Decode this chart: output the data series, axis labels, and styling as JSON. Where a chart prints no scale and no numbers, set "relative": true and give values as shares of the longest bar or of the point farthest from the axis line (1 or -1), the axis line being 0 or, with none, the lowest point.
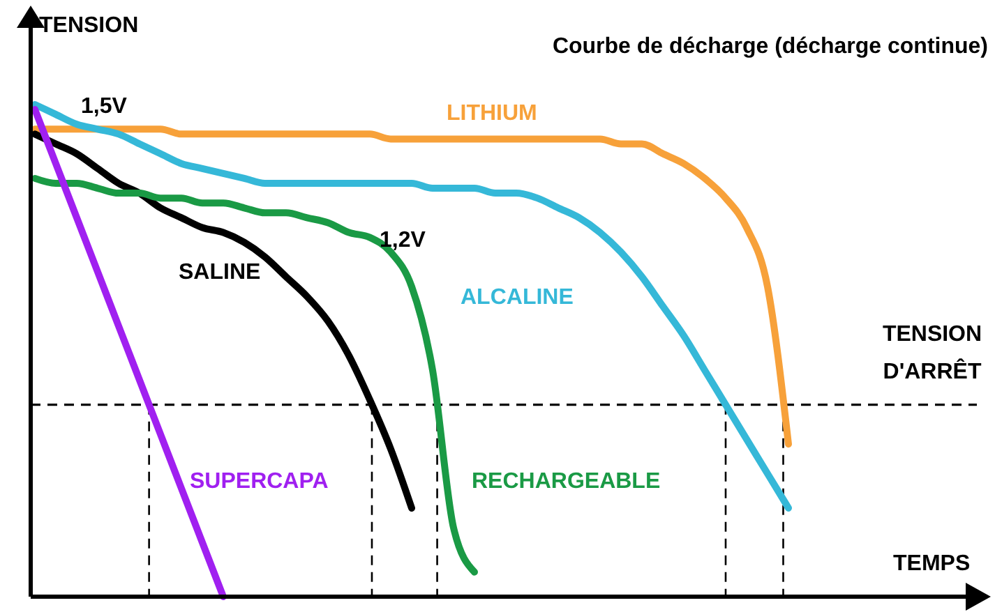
{
  "chart_data": {
    "type": "line",
    "title": "Courbe de décharge (décharge continue)",
    "xlabel": "TEMPS",
    "ylabel": "TENSION",
    "relative": true,
    "legend": false,
    "grid": false,
    "marker": "none",
    "line_style": "solid",
    "categories": [
      null,
      null,
      null,
      null,
      null,
      null,
      null,
      null,
      null,
      null,
      null,
      null,
      null,
      null,
      null,
      null,
      null,
      null,
      null,
      null,
      null,
      null,
      null,
      null,
      null,
      null,
      null,
      null,
      null,
      null,
      null,
      null,
      null,
      null,
      null,
      null,
      null,
      null,
      null,
      null,
      null,
      null,
      null,
      null,
      null
    ],
    "series": [
      {
        "name": "LITHIUM",
        "color": "#f7a13a",
        "values": [
          0.95,
          0.95,
          0.95,
          0.95,
          0.95,
          0.95,
          0.95,
          0.94,
          0.94,
          0.94,
          0.94,
          0.94,
          0.94,
          0.94,
          0.94,
          0.94,
          0.94,
          0.93,
          0.93,
          0.93,
          0.93,
          0.93,
          0.93,
          0.93,
          0.93,
          0.93,
          0.93,
          0.93,
          0.92,
          0.92,
          0.9,
          0.88,
          0.85,
          0.81,
          0.75,
          0.63,
          0.31,
          null,
          null,
          null,
          null,
          null,
          null,
          null,
          null
        ]
      },
      {
        "name": "ALCALINE",
        "color": "#35b8d8",
        "values": [
          1.0,
          0.98,
          0.96,
          0.95,
          0.94,
          0.92,
          0.9,
          0.88,
          0.87,
          0.86,
          0.85,
          0.84,
          0.84,
          0.84,
          0.84,
          0.84,
          0.84,
          0.84,
          0.84,
          0.83,
          0.83,
          0.83,
          0.82,
          0.82,
          0.81,
          0.79,
          0.77,
          0.74,
          0.7,
          0.65,
          0.59,
          0.53,
          0.46,
          0.39,
          0.32,
          0.25,
          0.18,
          null,
          null,
          null,
          null,
          null,
          null,
          null,
          null
        ]
      },
      {
        "name": "SALINE",
        "color": "#000000",
        "values": [
          0.94,
          0.92,
          0.9,
          0.87,
          0.84,
          0.82,
          0.79,
          0.77,
          0.75,
          0.74,
          0.72,
          0.69,
          0.65,
          0.61,
          0.56,
          0.49,
          0.4,
          0.3,
          0.18,
          null,
          null,
          null,
          null,
          null,
          null,
          null,
          null,
          null,
          null,
          null,
          null,
          null,
          null,
          null,
          null,
          null,
          null,
          null,
          null,
          null,
          null,
          null,
          null,
          null,
          null
        ]
      },
      {
        "name": "RECHARGEABLE",
        "color": "#1a9a45",
        "values": [
          0.85,
          0.84,
          0.84,
          0.83,
          0.82,
          0.82,
          0.81,
          0.81,
          0.8,
          0.8,
          0.79,
          0.78,
          0.78,
          0.77,
          0.76,
          0.74,
          0.73,
          0.7,
          0.63,
          0.46,
          0.14,
          0.05,
          null,
          null,
          null,
          null,
          null,
          null,
          null,
          null,
          null,
          null,
          null,
          null,
          null,
          null,
          null,
          null,
          null,
          null,
          null,
          null,
          null,
          null,
          null
        ]
      },
      {
        "name": "SUPERCAPA",
        "color": "#a020f0",
        "values": [
          0.99,
          0.88,
          0.77,
          0.66,
          0.55,
          0.44,
          0.33,
          0.22,
          0.11,
          0,
          null,
          null,
          null,
          null,
          null,
          null,
          null,
          null,
          null,
          null,
          null,
          null,
          null,
          null,
          null,
          null,
          null,
          null,
          null,
          null,
          null,
          null,
          null,
          null,
          null,
          null,
          null,
          null,
          null,
          null,
          null,
          null,
          null,
          null,
          null
        ]
      }
    ],
    "ref_lines": [
      {
        "axis": "y",
        "value": 0.39,
        "label": "TENSION D'ARRÊT",
        "line_style": "dashed",
        "color": "#000000"
      }
    ],
    "annotations": [
      "1,5V",
      "1,2V"
    ]
  }
}
